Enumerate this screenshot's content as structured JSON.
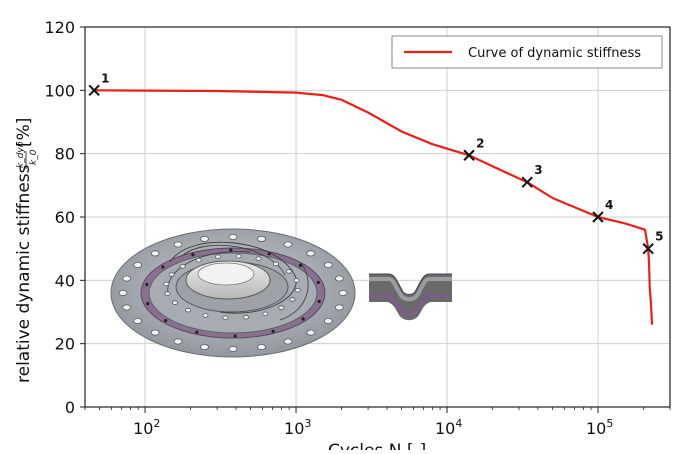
{
  "chart_data": {
    "type": "line",
    "xscale": "log",
    "xlim": [
      40,
      300000
    ],
    "ylim": [
      0,
      120
    ],
    "ylabel": "relative dynamic stiffness",
    "ylabel_fraction_num": "k_dyn",
    "ylabel_fraction_den": "k_0",
    "ylabel_unit": "[%]",
    "xlabel": "Cycles N [-]",
    "yticks": [
      0,
      20,
      40,
      60,
      80,
      100,
      120
    ],
    "xticks": [
      {
        "value": 100,
        "base": "10",
        "exp": "2"
      },
      {
        "value": 1000,
        "base": "10",
        "exp": "3"
      },
      {
        "value": 10000,
        "base": "10",
        "exp": "4"
      },
      {
        "value": 100000,
        "base": "10",
        "exp": "5"
      }
    ],
    "grid": true,
    "legend": {
      "position": "top-right",
      "entries": [
        "Curve of dynamic stiffness"
      ]
    },
    "series": [
      {
        "name": "Curve of dynamic stiffness",
        "color": "#e8201a",
        "x": [
          46,
          100,
          300,
          1000,
          1500,
          2000,
          3000,
          5000,
          8000,
          14000,
          20000,
          34000,
          50000,
          100000,
          150000,
          205000,
          210000,
          215000,
          218000,
          220000,
          225000,
          228000
        ],
        "y": [
          100,
          99.9,
          99.8,
          99.3,
          98.5,
          97,
          93,
          87,
          83,
          79.5,
          76,
          71,
          66,
          60,
          58,
          56,
          53,
          50,
          45,
          38,
          32,
          26
        ]
      }
    ],
    "markers": [
      {
        "label": "1",
        "x": 46,
        "y": 100
      },
      {
        "label": "2",
        "x": 14000,
        "y": 79.5
      },
      {
        "label": "3",
        "x": 34000,
        "y": 71
      },
      {
        "label": "4",
        "x": 100000,
        "y": 60
      },
      {
        "label": "5",
        "x": 215000,
        "y": 50
      }
    ],
    "inset_images": [
      "gasket-ring-illustration",
      "gasket-cross-section-illustration"
    ]
  }
}
